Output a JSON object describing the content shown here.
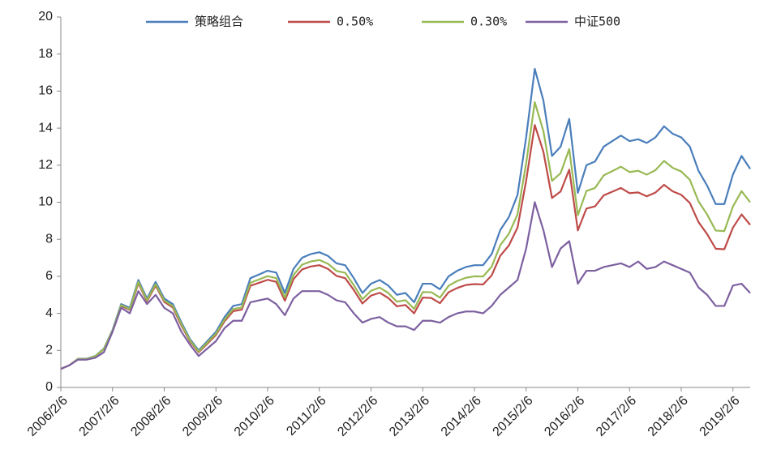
{
  "chart_data": {
    "type": "line",
    "categories": [
      "2006/2/6",
      null,
      null,
      null,
      null,
      null,
      "2007/2/6",
      null,
      null,
      null,
      null,
      null,
      "2008/2/6",
      null,
      null,
      null,
      null,
      null,
      "2009/2/6",
      null,
      null,
      null,
      null,
      null,
      "2010/2/6",
      null,
      null,
      null,
      null,
      null,
      "2011/2/6",
      null,
      null,
      null,
      null,
      null,
      "2012/2/6",
      null,
      null,
      null,
      null,
      null,
      "2013/2/6",
      null,
      null,
      null,
      null,
      null,
      "2014/2/6",
      null,
      null,
      null,
      null,
      null,
      "2015/2/6",
      null,
      null,
      null,
      null,
      null,
      "2016/2/6",
      null,
      null,
      null,
      null,
      null,
      "2017/2/6",
      null,
      null,
      null,
      null,
      null,
      "2018/2/6",
      null,
      null,
      null,
      null,
      null,
      "2019/2/6",
      null,
      null
    ],
    "series": [
      {
        "name": "策略组合",
        "color": "#4a7ebb",
        "values": [
          1.0,
          1.2,
          1.55,
          1.55,
          1.7,
          2.1,
          3.1,
          4.5,
          4.3,
          5.8,
          4.8,
          5.7,
          4.8,
          4.5,
          3.5,
          2.6,
          2.0,
          2.5,
          3.0,
          3.8,
          4.4,
          4.5,
          5.9,
          6.1,
          6.3,
          6.2,
          5.1,
          6.4,
          7.0,
          7.2,
          7.3,
          7.1,
          6.7,
          6.6,
          5.9,
          5.1,
          5.6,
          5.8,
          5.5,
          5.0,
          5.1,
          4.6,
          5.6,
          5.6,
          5.3,
          6.0,
          6.3,
          6.5,
          6.6,
          6.6,
          7.2,
          8.5,
          9.2,
          10.4,
          13.5,
          17.2,
          15.5,
          12.5,
          13.0,
          14.5,
          10.5,
          12.0,
          12.2,
          13.0,
          13.3,
          13.6,
          13.3,
          13.4,
          13.2,
          13.5,
          14.1,
          13.7,
          13.5,
          13.0,
          11.7,
          10.9,
          9.9,
          9.9,
          11.5,
          12.5,
          11.8
        ]
      },
      {
        "name": "0.50%",
        "color": "#be4b48",
        "values": [
          1.0,
          1.2,
          1.54,
          1.53,
          1.68,
          2.07,
          3.04,
          4.4,
          4.19,
          5.63,
          4.65,
          5.5,
          4.62,
          4.31,
          3.34,
          2.48,
          1.9,
          2.36,
          2.83,
          3.57,
          4.12,
          4.2,
          5.49,
          5.65,
          5.81,
          5.7,
          4.68,
          5.85,
          6.37,
          6.53,
          6.6,
          6.4,
          6.02,
          5.9,
          5.26,
          4.53,
          4.96,
          5.11,
          4.83,
          4.38,
          4.45,
          4.0,
          4.85,
          4.83,
          4.55,
          5.14,
          5.37,
          5.53,
          5.58,
          5.56,
          6.05,
          7.11,
          7.67,
          8.63,
          11.16,
          14.17,
          12.73,
          10.23,
          10.58,
          11.76,
          8.48,
          9.66,
          9.78,
          10.37,
          10.57,
          10.77,
          10.49,
          10.53,
          10.32,
          10.52,
          10.94,
          10.59,
          10.4,
          9.96,
          8.93,
          8.28,
          7.49,
          7.46,
          8.63,
          9.34,
          8.78
        ]
      },
      {
        "name": "0.30%",
        "color": "#98b954",
        "values": [
          1.0,
          1.2,
          1.54,
          1.54,
          1.69,
          2.08,
          3.06,
          4.44,
          4.23,
          5.7,
          4.71,
          5.58,
          4.69,
          4.39,
          3.41,
          2.53,
          1.94,
          2.42,
          2.9,
          3.66,
          4.23,
          4.32,
          5.65,
          5.83,
          6.01,
          5.9,
          4.85,
          6.07,
          6.63,
          6.8,
          6.88,
          6.68,
          6.29,
          6.19,
          5.52,
          4.76,
          5.22,
          5.39,
          5.1,
          4.63,
          4.71,
          4.24,
          5.15,
          5.14,
          4.85,
          5.49,
          5.75,
          5.92,
          6.0,
          5.99,
          6.52,
          7.68,
          8.3,
          9.35,
          12.09,
          15.4,
          13.85,
          11.15,
          11.57,
          12.87,
          9.3,
          10.61,
          10.77,
          11.45,
          11.68,
          11.92,
          11.63,
          11.7,
          11.49,
          11.73,
          12.23,
          11.86,
          11.66,
          11.21,
          10.05,
          9.34,
          8.47,
          8.44,
          9.77,
          10.6,
          10.0
        ]
      },
      {
        "name": "中证500",
        "color": "#7d60a0",
        "values": [
          1.0,
          1.2,
          1.5,
          1.5,
          1.6,
          1.9,
          3.0,
          4.3,
          4.0,
          5.2,
          4.5,
          5.0,
          4.3,
          4.0,
          3.0,
          2.3,
          1.7,
          2.1,
          2.5,
          3.2,
          3.6,
          3.6,
          4.6,
          4.7,
          4.8,
          4.5,
          3.9,
          4.8,
          5.2,
          5.2,
          5.2,
          5.0,
          4.7,
          4.6,
          4.0,
          3.5,
          3.7,
          3.8,
          3.5,
          3.3,
          3.3,
          3.1,
          3.6,
          3.6,
          3.5,
          3.8,
          4.0,
          4.1,
          4.1,
          4.0,
          4.4,
          5.0,
          5.4,
          5.8,
          7.5,
          10.0,
          8.5,
          6.5,
          7.5,
          7.9,
          5.6,
          6.3,
          6.3,
          6.5,
          6.6,
          6.7,
          6.5,
          6.8,
          6.4,
          6.5,
          6.8,
          6.6,
          6.4,
          6.2,
          5.4,
          5.0,
          4.4,
          4.4,
          5.5,
          5.6,
          5.1
        ]
      }
    ],
    "ylim": [
      0,
      20
    ],
    "yticks": [
      0,
      2,
      4,
      6,
      8,
      10,
      12,
      14,
      16,
      18,
      20
    ],
    "grid": false,
    "legend": "top"
  }
}
